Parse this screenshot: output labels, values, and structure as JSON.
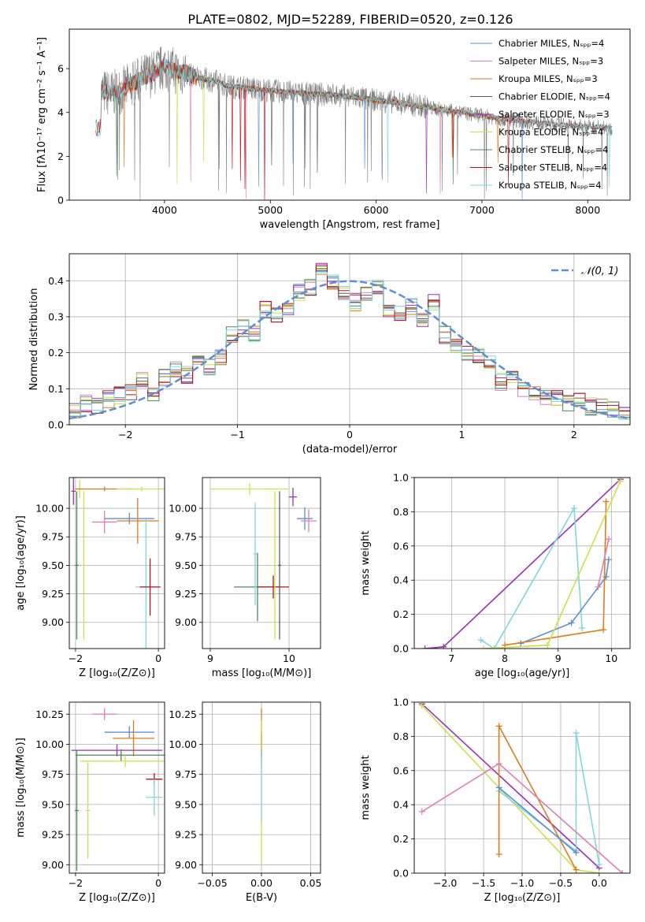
{
  "figure": {
    "title": "PLATE=0802, MJD=52289, FIBERID=0520, z=0.126"
  },
  "colors": {
    "chabrier_miles": "#5b8fd6",
    "salpeter_miles": "#e07fb1",
    "kroupa_miles": "#e07a1c",
    "chabrier_elodie": "#5a5a5a",
    "salpeter_elodie": "#9b30b5",
    "kroupa_elodie": "#c9e24a",
    "chabrier_stelib": "#4c8a5c",
    "salpeter_stelib": "#b5121b",
    "kroupa_stelib": "#7fd7dd",
    "gaussian": "#5b8fd6",
    "spectrum": "#808080"
  },
  "chart_data": [
    {
      "type": "line",
      "name": "spectrum",
      "xlabel": "wavelength [Angstrom, rest frame]",
      "ylabel": "Flux [fλ10⁻¹⁷ erg cm⁻² s⁻¹ A⁻¹]",
      "xlim": [
        3100,
        8400
      ],
      "ylim": [
        0,
        7.8
      ],
      "xticks": [
        4000,
        5000,
        6000,
        7000,
        8000
      ],
      "yticks": [
        0,
        2,
        4,
        6
      ],
      "legend_position": "top-right",
      "legend": [
        "Chabrier MILES, Nₛₚₚ=4",
        "Salpeter MILES, Nₛₚₚ=3",
        "Kroupa MILES, Nₛₚₚ=3",
        "Chabrier ELODIE, Nₛₚₚ=4",
        "Salpeter ELODIE, Nₛₚₚ=3",
        "Kroupa ELODIE, Nₛₚₚ=4",
        "Chabrier STELIB, Nₛₚₚ=4",
        "Salpeter STELIB, Nₛₚₚ=4",
        "Kroupa STELIB, Nₛₚₚ=4"
      ],
      "x": [
        3400,
        3500,
        3600,
        3700,
        3800,
        3900,
        4000,
        4100,
        4200,
        4300,
        4400,
        4500,
        4600,
        4800,
        5000,
        5200,
        5400,
        5600,
        5800,
        6000,
        6200,
        6400,
        6600,
        6800,
        7000,
        7200,
        7400,
        7600,
        7800,
        8000,
        8200
      ],
      "y": [
        4.95,
        4.85,
        5.0,
        5.3,
        5.6,
        5.8,
        6.1,
        5.9,
        5.8,
        5.6,
        5.5,
        5.4,
        5.2,
        5.1,
        5.0,
        4.9,
        4.85,
        4.8,
        4.7,
        4.55,
        4.45,
        4.3,
        4.15,
        4.0,
        3.85,
        3.7,
        3.6,
        3.5,
        3.4,
        3.35,
        3.3
      ]
    },
    {
      "type": "bar",
      "name": "residual-distribution",
      "xlabel": "(data-model)/error",
      "ylabel": "Normed distribution",
      "xlim": [
        -2.5,
        2.5
      ],
      "ylim": [
        0,
        0.475
      ],
      "xticks": [
        -2,
        -1,
        0,
        1,
        2
      ],
      "yticks": [
        0.0,
        0.1,
        0.2,
        0.3,
        0.4
      ],
      "legend": [
        "𝒩(0, 1)"
      ],
      "bin_edges": [
        -2.5,
        -2.4,
        -2.3,
        -2.2,
        -2.1,
        -2.0,
        -1.9,
        -1.8,
        -1.7,
        -1.6,
        -1.5,
        -1.4,
        -1.3,
        -1.2,
        -1.1,
        -1.0,
        -0.9,
        -0.8,
        -0.7,
        -0.6,
        -0.5,
        -0.4,
        -0.3,
        -0.2,
        -0.1,
        0.0,
        0.1,
        0.2,
        0.3,
        0.4,
        0.5,
        0.6,
        0.7,
        0.8,
        0.9,
        1.0,
        1.1,
        1.2,
        1.3,
        1.4,
        1.5,
        1.6,
        1.7,
        1.8,
        1.9,
        2.0,
        2.1,
        2.2,
        2.3,
        2.4,
        2.5
      ],
      "values": [
        0.035,
        0.06,
        0.05,
        0.07,
        0.08,
        0.09,
        0.13,
        0.09,
        0.13,
        0.15,
        0.14,
        0.17,
        0.16,
        0.19,
        0.25,
        0.27,
        0.25,
        0.32,
        0.3,
        0.33,
        0.37,
        0.38,
        0.43,
        0.4,
        0.37,
        0.34,
        0.36,
        0.38,
        0.32,
        0.31,
        0.33,
        0.29,
        0.34,
        0.25,
        0.22,
        0.2,
        0.19,
        0.17,
        0.12,
        0.13,
        0.1,
        0.09,
        0.08,
        0.07,
        0.06,
        0.07,
        0.05,
        0.05,
        0.04,
        0.04
      ],
      "gaussian": {
        "mu": 0,
        "sigma": 1
      }
    },
    {
      "type": "scatter",
      "name": "age-vs-Z",
      "xlabel": "Z [log₁₀(Z/Z⊙)]",
      "ylabel": "age  [log₁₀(age/yr)]",
      "xlim": [
        -2.15,
        0.15
      ],
      "ylim": [
        8.77,
        10.27
      ],
      "xticks": [
        -2,
        0
      ],
      "yticks": [
        9.0,
        9.25,
        9.5,
        9.75,
        10.0
      ],
      "points": [
        {
          "x": -1.9,
          "y": 10.17,
          "xerr": 0.15,
          "yerr": 0.08,
          "c": "kroupa_elodie"
        },
        {
          "x": -1.3,
          "y": 10.17,
          "xerr": 0.7,
          "yerr": 0.02,
          "c": "kroupa_miles"
        },
        {
          "x": -0.4,
          "y": 10.17,
          "xerr": 0.6,
          "yerr": 0.02,
          "c": "kroupa_elodie"
        },
        {
          "x": -1.3,
          "y": 9.88,
          "xerr": 0.3,
          "yerr": 0.1,
          "c": "salpeter_miles"
        },
        {
          "x": -0.7,
          "y": 9.91,
          "xerr": 0.6,
          "yerr": 0.05,
          "c": "chabrier_miles"
        },
        {
          "x": -0.5,
          "y": 9.89,
          "xerr": 0.5,
          "yerr": 0.2,
          "c": "kroupa_miles"
        },
        {
          "x": -0.3,
          "y": 9.31,
          "xerr": 0.25,
          "yerr": 0.6,
          "c": "kroupa_stelib"
        },
        {
          "x": -0.2,
          "y": 9.31,
          "xerr": 0.25,
          "yerr": 0.25,
          "c": "salpeter_stelib"
        },
        {
          "x": -2.05,
          "y": 10.15,
          "xerr": 0.05,
          "yerr": 0.12,
          "c": "salpeter_elodie"
        },
        {
          "x": -1.97,
          "y": 9.5,
          "xerr": 0.05,
          "yerr": 0.65,
          "c": "chabrier_stelib"
        },
        {
          "x": -1.8,
          "y": 9.5,
          "xerr": 0.05,
          "yerr": 0.65,
          "c": "kroupa_elodie"
        }
      ]
    },
    {
      "type": "scatter",
      "name": "age-vs-mass",
      "xlabel": "mass [log₁₀(M/M⊙)]",
      "ylabel": "",
      "xlim": [
        8.9,
        10.4
      ],
      "ylim": [
        8.77,
        10.27
      ],
      "xticks": [
        9,
        10
      ],
      "yticks": [
        9.0,
        9.25,
        9.5,
        9.75,
        10.0
      ],
      "points": [
        {
          "x": 9.5,
          "y": 10.17,
          "xerr": 0.5,
          "yerr": 0.05,
          "c": "kroupa_elodie"
        },
        {
          "x": 10.05,
          "y": 10.1,
          "xerr": 0.05,
          "yerr": 0.08,
          "c": "salpeter_elodie"
        },
        {
          "x": 10.2,
          "y": 9.91,
          "xerr": 0.1,
          "yerr": 0.1,
          "c": "chabrier_miles"
        },
        {
          "x": 10.25,
          "y": 9.89,
          "xerr": 0.1,
          "yerr": 0.1,
          "c": "salpeter_miles"
        },
        {
          "x": 9.6,
          "y": 9.31,
          "xerr": 0.3,
          "yerr": 0.3,
          "c": "chabrier_stelib"
        },
        {
          "x": 9.8,
          "y": 9.31,
          "xerr": 0.2,
          "yerr": 0.1,
          "c": "salpeter_stelib"
        },
        {
          "x": 9.57,
          "y": 9.6,
          "xerr": 0.02,
          "yerr": 0.45,
          "c": "kroupa_stelib"
        },
        {
          "x": 9.88,
          "y": 9.5,
          "xerr": 0.02,
          "yerr": 0.65,
          "c": "chabrier_elodie"
        },
        {
          "x": 9.82,
          "y": 9.5,
          "xerr": 0.02,
          "yerr": 0.65,
          "c": "kroupa_elodie"
        }
      ]
    },
    {
      "type": "line",
      "name": "mass-weight-vs-age",
      "xlabel": "age  [log₁₀(age/yr)]",
      "ylabel": "mass weight",
      "xlim": [
        6.3,
        10.35
      ],
      "ylim": [
        0,
        1
      ],
      "xticks": [
        7,
        8,
        9,
        10
      ],
      "yticks": [
        0.0,
        0.2,
        0.4,
        0.6,
        0.8,
        1.0
      ],
      "series": [
        {
          "c": "salpeter_elodie",
          "x": [
            6.5,
            6.85,
            10.17
          ],
          "y": [
            0.0,
            0.01,
            0.99
          ]
        },
        {
          "c": "kroupa_stelib",
          "x": [
            7.55,
            7.8,
            9.3,
            9.45
          ],
          "y": [
            0.05,
            0.0,
            0.82,
            0.12
          ]
        },
        {
          "c": "chabrier_miles",
          "x": [
            8.3,
            9.25,
            9.9,
            9.95
          ],
          "y": [
            0.03,
            0.15,
            0.42,
            0.52
          ]
        },
        {
          "c": "kroupa_miles",
          "x": [
            8.0,
            9.85,
            9.9
          ],
          "y": [
            0.02,
            0.11,
            0.86
          ]
        },
        {
          "c": "salpeter_miles",
          "x": [
            9.75,
            9.95
          ],
          "y": [
            0.36,
            0.64
          ]
        },
        {
          "c": "kroupa_elodie",
          "x": [
            7.6,
            8.8,
            10.17
          ],
          "y": [
            0.0,
            0.02,
            0.98
          ]
        }
      ]
    },
    {
      "type": "scatter",
      "name": "mass-vs-Z",
      "xlabel": "Z [log₁₀(Z/Z⊙)]",
      "ylabel": "mass [log₁₀(M/M⊙)]",
      "xlim": [
        -2.15,
        0.15
      ],
      "ylim": [
        8.93,
        10.35
      ],
      "xticks": [
        -2,
        0
      ],
      "yticks": [
        9.0,
        9.25,
        9.5,
        9.75,
        10.0,
        10.25
      ],
      "points": [
        {
          "x": -1.3,
          "y": 10.25,
          "xerr": 0.3,
          "yerr": 0.05,
          "c": "salpeter_miles"
        },
        {
          "x": -0.7,
          "y": 10.1,
          "xerr": 0.6,
          "yerr": 0.05,
          "c": "chabrier_miles"
        },
        {
          "x": -0.6,
          "y": 10.05,
          "xerr": 0.5,
          "yerr": 0.15,
          "c": "kroupa_miles"
        },
        {
          "x": -1.0,
          "y": 9.95,
          "xerr": 1.1,
          "yerr": 0.05,
          "c": "salpeter_elodie"
        },
        {
          "x": -0.9,
          "y": 9.91,
          "xerr": 1.1,
          "yerr": 0.05,
          "c": "chabrier_stelib"
        },
        {
          "x": -0.8,
          "y": 9.86,
          "xerr": 1.1,
          "yerr": 0.05,
          "c": "kroupa_elodie"
        },
        {
          "x": -0.1,
          "y": 9.71,
          "xerr": 0.2,
          "yerr": 0.05,
          "c": "salpeter_stelib"
        },
        {
          "x": -0.1,
          "y": 9.56,
          "xerr": 0.2,
          "yerr": 0.15,
          "c": "kroupa_stelib"
        },
        {
          "x": -1.97,
          "y": 9.45,
          "xerr": 0.05,
          "yerr": 0.5,
          "c": "chabrier_stelib"
        },
        {
          "x": -1.7,
          "y": 9.45,
          "xerr": 0.05,
          "yerr": 0.4,
          "c": "kroupa_elodie"
        }
      ]
    },
    {
      "type": "scatter",
      "name": "mass-vs-EBV",
      "xlabel": "E(B-V)",
      "ylabel": "",
      "xlim": [
        -0.06,
        0.06
      ],
      "ylim": [
        8.93,
        10.35
      ],
      "xticks": [
        -0.05,
        0.0,
        0.05
      ],
      "yticks": [
        9.0,
        9.25,
        9.5,
        9.75,
        10.0,
        10.25
      ],
      "points": [
        {
          "x": 0.0,
          "y": 10.05,
          "xerr": 0.0,
          "yerr": 0.25,
          "c": "kroupa_miles"
        },
        {
          "x": 0.0,
          "y": 10.0,
          "xerr": 0.0,
          "yerr": 0.1,
          "c": "salpeter_stelib"
        },
        {
          "x": 0.0,
          "y": 9.6,
          "xerr": 0.0,
          "yerr": 0.6,
          "c": "kroupa_elodie"
        },
        {
          "x": 0.0,
          "y": 9.65,
          "xerr": 0.0,
          "yerr": 0.3,
          "c": "kroupa_stelib"
        }
      ]
    },
    {
      "type": "line",
      "name": "mass-weight-vs-Z",
      "xlabel": "Z [log₁₀(Z/Z⊙)]",
      "ylabel": "mass weight",
      "xlim": [
        -2.4,
        0.4
      ],
      "ylim": [
        0,
        1
      ],
      "xticks": [
        -2.0,
        -1.5,
        -1.0,
        -0.5,
        0.0
      ],
      "yticks": [
        0.0,
        0.2,
        0.4,
        0.6,
        0.8,
        1.0
      ],
      "series": [
        {
          "c": "salpeter_elodie",
          "x": [
            -2.3,
            0.0
          ],
          "y": [
            0.99,
            0.03
          ]
        },
        {
          "c": "kroupa_elodie",
          "x": [
            -2.3,
            -1.3,
            -0.3,
            0.0
          ],
          "y": [
            0.98,
            0.5,
            0.02,
            0.0
          ]
        },
        {
          "c": "kroupa_stelib",
          "x": [
            -1.3,
            -0.3,
            -0.3,
            0.0
          ],
          "y": [
            0.48,
            0.13,
            0.82,
            0.05
          ]
        },
        {
          "c": "kroupa_miles",
          "x": [
            -1.3,
            -1.3,
            -0.3
          ],
          "y": [
            0.11,
            0.86,
            0.02
          ]
        },
        {
          "c": "salpeter_miles",
          "x": [
            -2.3,
            -1.3,
            0.3
          ],
          "y": [
            0.36,
            0.64,
            0.0
          ]
        },
        {
          "c": "chabrier_miles",
          "x": [
            -1.3,
            -0.3
          ],
          "y": [
            0.5,
            0.12
          ]
        }
      ]
    }
  ]
}
